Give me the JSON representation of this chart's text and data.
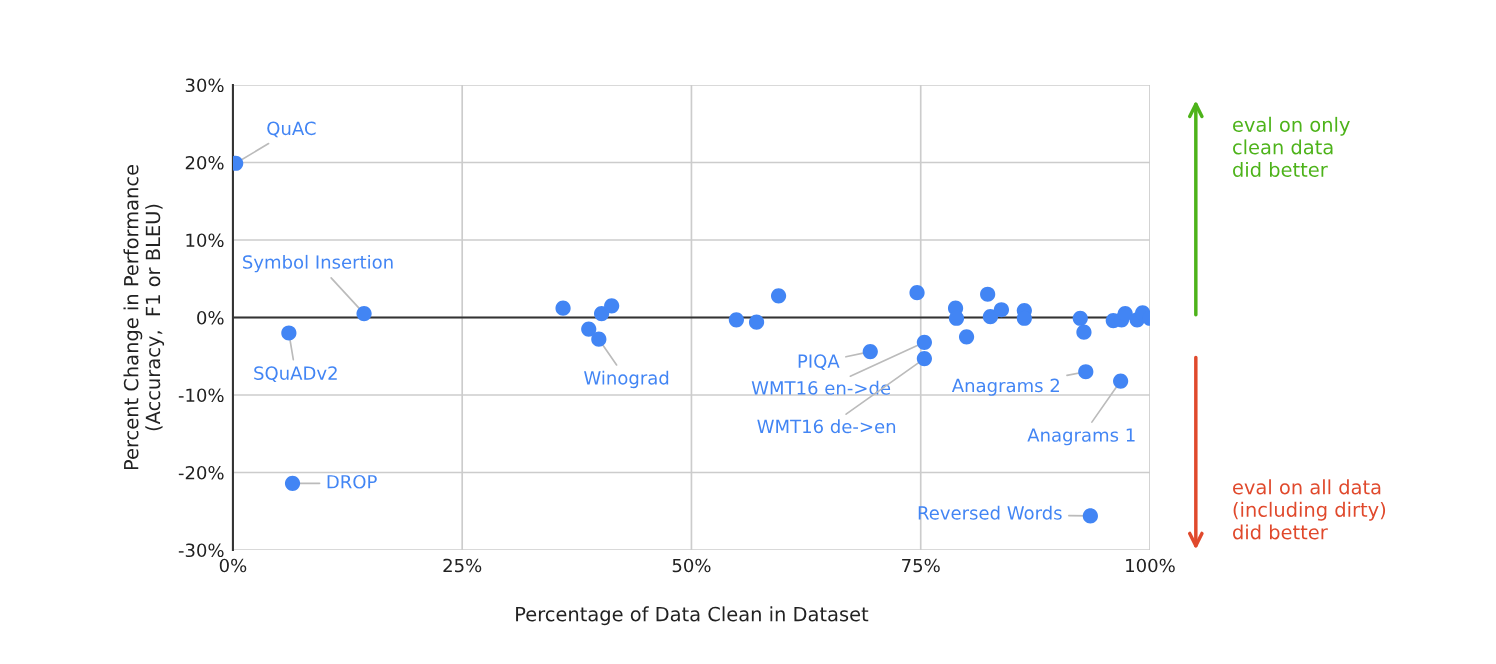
{
  "chart_data": {
    "type": "scatter",
    "xlabel": "Percentage of Data Clean in Dataset",
    "ylabel": "Percent Change in Performance\n(Accuracy,  F1 or BLEU)",
    "x": [
      0.3,
      6.1,
      14.3,
      6.5,
      36.0,
      40.2,
      41.3,
      38.8,
      39.9,
      54.9,
      57.1,
      59.5,
      74.6,
      69.5,
      75.4,
      75.4,
      78.8,
      78.9,
      80.0,
      82.3,
      82.6,
      83.8,
      86.3,
      86.3,
      92.4,
      92.8,
      93.0,
      96.8,
      96.0,
      96.9,
      97.3,
      98.6,
      99.2,
      100,
      93.5
    ],
    "values": [
      19.9,
      -2.0,
      0.5,
      -21.4,
      1.2,
      0.5,
      1.5,
      -1.5,
      -2.8,
      -0.3,
      -0.6,
      2.8,
      3.2,
      -4.4,
      -3.2,
      -5.3,
      1.2,
      -0.1,
      -2.5,
      3.0,
      0.1,
      1.0,
      0.9,
      -0.1,
      -0.1,
      -1.9,
      -7.0,
      -8.2,
      -0.4,
      -0.3,
      0.5,
      -0.3,
      0.6,
      -0.1,
      -25.6
    ],
    "color": "#4285f4",
    "marker": "circle",
    "xlim": [
      0,
      100
    ],
    "xticks": [
      {
        "value": 0,
        "label": "0%"
      },
      {
        "value": 25,
        "label": "25%"
      },
      {
        "value": 50,
        "label": "50%"
      },
      {
        "value": 75,
        "label": "75%"
      },
      {
        "value": 100,
        "label": "100%"
      }
    ],
    "ylim": [
      -30,
      30
    ],
    "yticks": [
      {
        "value": -30,
        "label": "-30%"
      },
      {
        "value": -20,
        "label": "-20%"
      },
      {
        "value": -10,
        "label": "-10%"
      },
      {
        "value": 0,
        "label": "0%"
      },
      {
        "value": 10,
        "label": "10%"
      },
      {
        "value": 20,
        "label": "20%"
      },
      {
        "value": 30,
        "label": "30%"
      }
    ],
    "grid": true,
    "ref_lines": [
      {
        "axis": "y",
        "value": 0,
        "color": "#333333"
      }
    ],
    "annotations": [
      {
        "text": "QuAC",
        "x": 0.3,
        "y": 19.9
      },
      {
        "text": "Symbol Insertion",
        "x": 14.3,
        "y": 0.5
      },
      {
        "text": "SQuADv2",
        "x": 6.1,
        "y": -2.0
      },
      {
        "text": "DROP",
        "x": 6.5,
        "y": -21.4
      },
      {
        "text": "Winograd",
        "x": 39.9,
        "y": -2.8
      },
      {
        "text": "PIQA",
        "x": 69.5,
        "y": -4.4
      },
      {
        "text": "WMT16 en->de",
        "x": 75.4,
        "y": -3.2
      },
      {
        "text": "WMT16 de->en",
        "x": 75.4,
        "y": -5.3
      },
      {
        "text": "Anagrams 2",
        "x": 93.0,
        "y": -7.0
      },
      {
        "text": "Anagrams 1",
        "x": 96.8,
        "y": -8.2
      },
      {
        "text": "Reversed Words",
        "x": 93.5,
        "y": -25.6
      },
      "eval on only\nclean data\ndid better",
      "eval on all data\n(including dirty)\ndid better"
    ]
  }
}
